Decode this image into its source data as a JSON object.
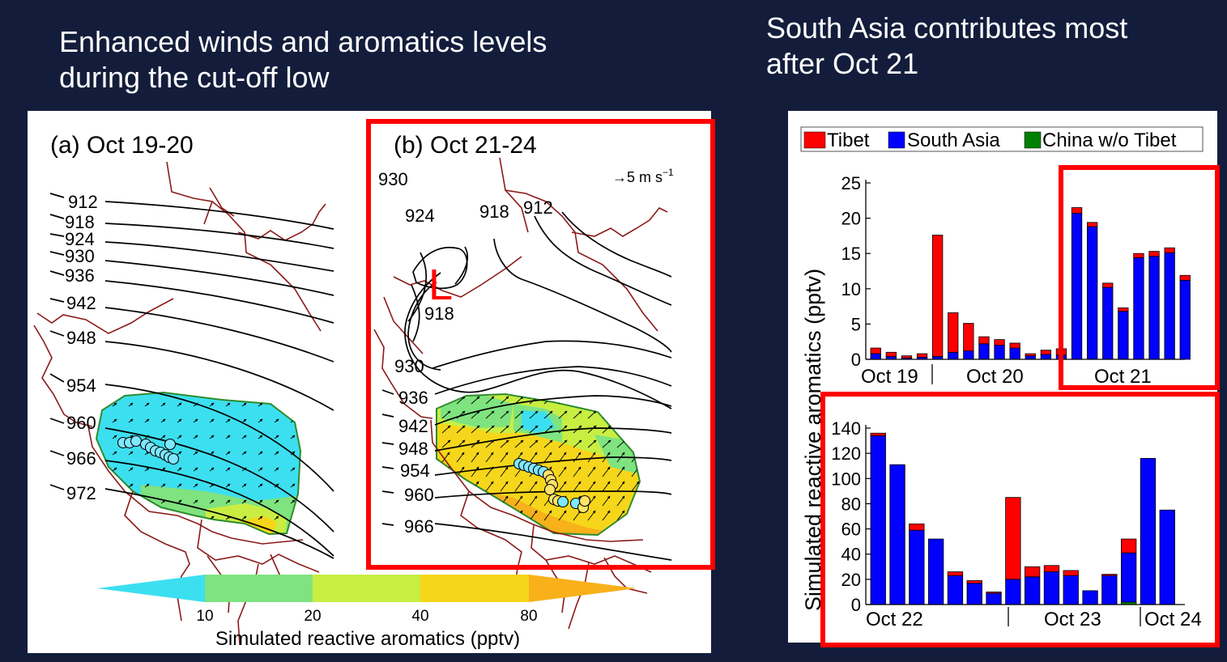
{
  "slide": {
    "left_title_line1": "Enhanced winds and aromatics levels",
    "left_title_line2": "during the cut-off low",
    "right_title_line1": "South Asia contributes most",
    "right_title_line2": "after Oct 21"
  },
  "map": {
    "panel_a_label": "(a) Oct 19-20",
    "panel_b_label": "(b) Oct 21-24",
    "wind_scale": "→5 m s",
    "wind_scale_exp": "−1",
    "low_marker": "L",
    "contours_a": [
      "912",
      "918",
      "924",
      "930",
      "936",
      "942",
      "948",
      "954",
      "960",
      "966",
      "972"
    ],
    "contours_b": [
      "930",
      "924",
      "918",
      "912",
      "918",
      "930",
      "936",
      "942",
      "948",
      "954",
      "960",
      "966"
    ],
    "colorbar_ticks": [
      "10",
      "20",
      "40",
      "80"
    ],
    "colorbar_label": "Simulated reactive aromatics (pptv)",
    "colors": {
      "lt10": "#3cdff0",
      "10-20": "#7fe37f",
      "20-40": "#c8ee42",
      "40-80": "#f6d61a",
      "gt80": "#f8b11a",
      "border": "#8b1a1a",
      "highlight": "#ff0000"
    }
  },
  "chart_data": [
    {
      "type": "bar",
      "stacked": true,
      "ylabel": "Simulated reactive aromatics (pptv)",
      "ylim": [
        0,
        25
      ],
      "yticks": [
        0,
        5,
        10,
        15,
        20,
        25
      ],
      "legend": {
        "placement": "top",
        "entries": [
          "Tibet",
          "South Asia",
          "China w/o Tibet"
        ]
      },
      "series_colors": {
        "Tibet": "#ff0000",
        "South Asia": "#0000ff",
        "China w/o Tibet": "#008000"
      },
      "day_labels": [
        "Oct 19",
        "Oct 20",
        "Oct 21"
      ],
      "series": [
        {
          "name": "South Asia",
          "values": [
            0.8,
            0.4,
            0.2,
            0.3,
            0.4,
            1.0,
            1.2,
            2.2,
            2.0,
            1.6,
            0.5,
            0.7,
            0.6,
            20.7,
            18.8,
            10.2,
            6.8,
            14.4,
            14.6,
            15.1,
            11.2
          ]
        },
        {
          "name": "Tibet",
          "values": [
            0.8,
            0.6,
            0.3,
            0.5,
            17.2,
            5.6,
            3.9,
            1.0,
            0.8,
            0.7,
            0.3,
            0.6,
            0.9,
            0.8,
            0.6,
            0.6,
            0.5,
            0.6,
            0.7,
            0.7,
            0.7
          ]
        },
        {
          "name": "China w/o Tibet",
          "values": [
            0,
            0,
            0,
            0,
            0,
            0,
            0,
            0,
            0,
            0,
            0,
            0,
            0,
            0,
            0,
            0,
            0,
            0,
            0,
            0,
            0
          ]
        }
      ]
    },
    {
      "type": "bar",
      "stacked": true,
      "ylabel": "Simulated reactive aromatics (pptv)",
      "ylim": [
        0,
        140
      ],
      "yticks": [
        0,
        20,
        40,
        60,
        80,
        100,
        120,
        140
      ],
      "day_labels": [
        "Oct 22",
        "Oct 23",
        "Oct 24"
      ],
      "series": [
        {
          "name": "South Asia",
          "values": [
            134,
            111,
            59,
            52,
            23,
            17,
            9,
            20,
            22,
            26,
            23,
            11,
            23,
            39,
            116,
            75
          ]
        },
        {
          "name": "Tibet",
          "values": [
            2,
            0,
            5,
            0,
            3,
            2,
            1,
            65,
            8,
            5,
            4,
            0,
            1,
            11,
            0,
            0
          ]
        },
        {
          "name": "China w/o Tibet",
          "values": [
            0,
            0,
            0,
            0,
            0,
            0,
            0,
            0,
            0,
            0,
            0,
            0,
            0,
            2,
            0,
            0
          ]
        }
      ]
    }
  ]
}
